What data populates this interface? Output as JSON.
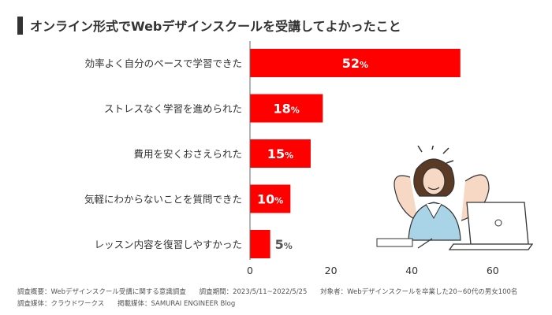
{
  "title": "オンライン形式でWebデザインスクールを受講してよかったこと",
  "chart_data": {
    "type": "bar",
    "orientation": "horizontal",
    "categories": [
      "効率よく自分のペースで学習できた",
      "ストレスなく学習を進められた",
      "費用を安くおさえられた",
      "気軽にわからないことを質問できた",
      "レッスン内容を復習しやすかった"
    ],
    "values": [
      52,
      18,
      15,
      10,
      5
    ],
    "value_suffix": "%",
    "xlim": [
      0,
      60
    ],
    "xticks": [
      "0",
      "20",
      "40",
      "60"
    ],
    "bar_color": "#ff0000",
    "label_color_inside": "#ffffff",
    "label_color_outside": "#555555",
    "grid": false
  },
  "footer": {
    "survey_summary": "調査概要：Webデザインスクール受講に関する意識調査",
    "survey_period": "調査期間：2023/5/11~2022/5/25",
    "respondents": "対象者：Webデザインスクールを卒業した20~60代の男女100名",
    "survey_medium": "調査媒体：クラウドワークス",
    "publisher": "掲載媒体：SAMURAI ENGINEER Blog"
  }
}
